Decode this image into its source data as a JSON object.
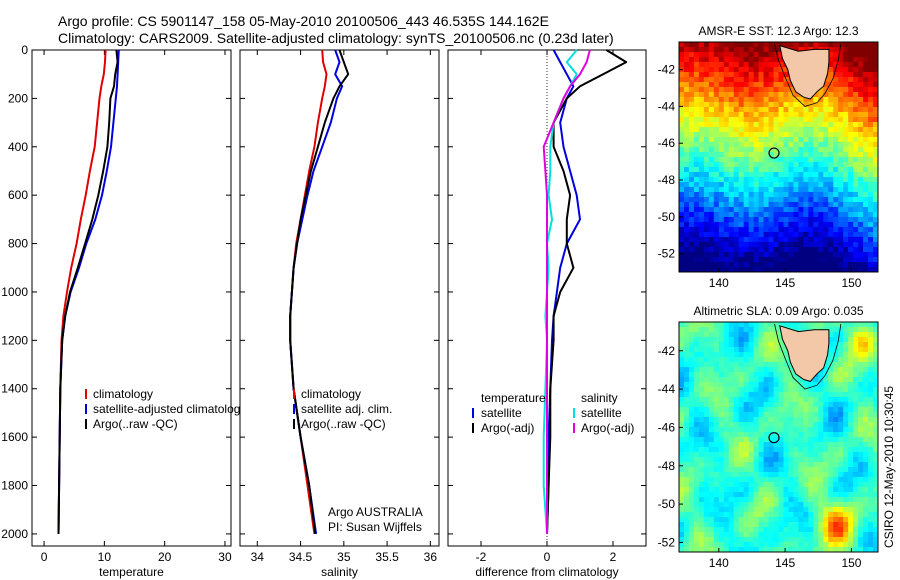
{
  "title": {
    "line1": "Argo profile: CS 5901147_158 05-May-2010 20100506_443 46.535S 144.162E",
    "line2": "Climatology: CARS2009. Satellite-adjusted climatology: synTS_20100506.nc (0.23d later)"
  },
  "colors": {
    "climatology": "#e00000",
    "satellite": "#0000e0",
    "argo": "#000000",
    "satellite_salinity": "#00e0e0",
    "argo_salinity": "#e000e0"
  },
  "chart_data": [
    {
      "type": "line",
      "name": "temperature-panel",
      "xlabel": "temperature",
      "xlim": [
        -2,
        31
      ],
      "ylim": [
        0,
        2050
      ],
      "y_reversed": true,
      "xticks": [
        "0",
        "10",
        "20",
        "30"
      ],
      "xtick_values": [
        0,
        10,
        20,
        30
      ],
      "yticks": [
        "0",
        "200",
        "400",
        "600",
        "800",
        "1000",
        "1200",
        "1400",
        "1600",
        "1800",
        "2000"
      ],
      "ytick_values": [
        0,
        200,
        400,
        600,
        800,
        1000,
        1200,
        1400,
        1600,
        1800,
        2000
      ],
      "legend": [
        "climatology",
        "satellite-adjusted climatolog",
        "Argo(..raw -QC)"
      ],
      "series": [
        {
          "key": "climatology",
          "color": "#e00000",
          "x": [
            10.2,
            10.1,
            9.9,
            9.5,
            9.2,
            8.8,
            8.4,
            7.6,
            6.9,
            6.1,
            5.4,
            4.5,
            3.8,
            3.2,
            2.9,
            2.7,
            2.6,
            2.5,
            2.4
          ],
          "y": [
            0,
            50,
            100,
            150,
            200,
            300,
            400,
            500,
            600,
            700,
            800,
            900,
            1000,
            1100,
            1200,
            1400,
            1600,
            1800,
            2000
          ]
        },
        {
          "key": "satellite",
          "color": "#0000e0",
          "x": [
            12.4,
            12.3,
            12.2,
            12.1,
            11.9,
            11.5,
            11.1,
            10.4,
            9.6,
            8.5,
            7.0,
            5.8,
            4.4,
            3.5,
            3.0,
            2.7,
            2.6,
            2.5,
            2.4
          ],
          "y": [
            0,
            50,
            100,
            150,
            200,
            300,
            400,
            500,
            600,
            700,
            800,
            900,
            1000,
            1100,
            1200,
            1400,
            1600,
            1800,
            2000
          ]
        },
        {
          "key": "argo",
          "color": "#000000",
          "x": [
            12.0,
            12.2,
            11.8,
            11.6,
            11.0,
            10.8,
            10.5,
            9.8,
            9.0,
            8.0,
            6.8,
            5.6,
            4.3,
            3.5,
            3.0,
            2.7,
            2.6,
            2.5,
            2.4
          ],
          "y": [
            0,
            50,
            100,
            150,
            200,
            300,
            400,
            500,
            600,
            700,
            800,
            900,
            1000,
            1100,
            1200,
            1400,
            1600,
            1800,
            2000
          ]
        }
      ]
    },
    {
      "type": "line",
      "name": "salinity-panel",
      "xlabel": "salinity",
      "xlim": [
        33.8,
        36.1
      ],
      "ylim": [
        0,
        2050
      ],
      "y_reversed": true,
      "xticks": [
        "34",
        "34.5",
        "35",
        "35.5",
        "36"
      ],
      "xtick_values": [
        34,
        34.5,
        35,
        35.5,
        36
      ],
      "legend": [
        "climatology",
        "satellite adj. clim.",
        "Argo(..raw -QC)"
      ],
      "annotation": [
        "Argo AUSTRALIA",
        "PI: Susan Wijffels"
      ],
      "series": [
        {
          "key": "climatology",
          "color": "#e00000",
          "x": [
            34.75,
            34.76,
            34.8,
            34.78,
            34.75,
            34.7,
            34.66,
            34.6,
            34.55,
            34.5,
            34.45,
            34.42,
            34.4,
            34.38,
            34.38,
            34.42,
            34.5,
            34.58,
            34.66
          ],
          "y": [
            0,
            50,
            100,
            150,
            200,
            300,
            400,
            500,
            600,
            700,
            800,
            900,
            1000,
            1100,
            1200,
            1400,
            1600,
            1800,
            2000
          ]
        },
        {
          "key": "satellite",
          "color": "#0000e0",
          "x": [
            34.9,
            34.95,
            34.9,
            34.98,
            34.92,
            34.85,
            34.75,
            34.65,
            34.58,
            34.52,
            34.46,
            34.42,
            34.4,
            34.38,
            34.38,
            34.42,
            34.5,
            34.6,
            34.68
          ],
          "y": [
            0,
            50,
            100,
            150,
            200,
            300,
            400,
            500,
            600,
            700,
            800,
            900,
            1000,
            1100,
            1200,
            1400,
            1600,
            1800,
            2000
          ]
        },
        {
          "key": "argo",
          "color": "#000000",
          "x": [
            34.95,
            35.0,
            35.05,
            34.95,
            34.88,
            34.78,
            34.7,
            34.62,
            34.56,
            34.5,
            34.46,
            34.42,
            34.4,
            34.38,
            34.38,
            34.42,
            34.5,
            34.6,
            34.67
          ],
          "y": [
            0,
            50,
            100,
            150,
            200,
            300,
            400,
            500,
            600,
            700,
            800,
            900,
            1000,
            1100,
            1200,
            1400,
            1600,
            1800,
            2000
          ]
        }
      ]
    },
    {
      "type": "line",
      "name": "difference-panel",
      "xlabel": "difference from climatology",
      "xlim": [
        -3,
        3
      ],
      "ylim": [
        0,
        2050
      ],
      "y_reversed": true,
      "xticks": [
        "-2",
        "0",
        "2"
      ],
      "xtick_values": [
        -2,
        0,
        2
      ],
      "legend_left": [
        "temperature",
        "satellite",
        "Argo(-adj)"
      ],
      "legend_right": [
        "salinity",
        "satellite",
        "Argo(-adj)"
      ],
      "series": [
        {
          "key": "t_satellite",
          "color": "#0000e0",
          "x": [
            0.2,
            0.4,
            0.6,
            0.8,
            0.6,
            0.4,
            0.5,
            0.7,
            0.9,
            1.0,
            0.6,
            0.4,
            0.3,
            0.2,
            0.15,
            0.1,
            0.05,
            0.05,
            0.0
          ],
          "y": [
            0,
            50,
            100,
            150,
            200,
            300,
            400,
            500,
            600,
            700,
            800,
            900,
            1000,
            1100,
            1200,
            1400,
            1600,
            1800,
            2000
          ]
        },
        {
          "key": "t_argo",
          "color": "#000000",
          "x": [
            1.8,
            2.4,
            1.7,
            1.0,
            0.6,
            0.2,
            0.2,
            0.5,
            0.7,
            0.6,
            0.6,
            0.8,
            0.4,
            0.2,
            0.2,
            0.1,
            0.1,
            0.05,
            0.0
          ],
          "y": [
            0,
            50,
            100,
            150,
            200,
            300,
            400,
            500,
            600,
            700,
            800,
            900,
            1000,
            1100,
            1200,
            1400,
            1600,
            1800,
            2000
          ]
        },
        {
          "key": "s_satellite",
          "color": "#00e0e0",
          "x": [
            0.9,
            0.6,
            0.9,
            0.7,
            0.5,
            0.2,
            0.1,
            0.1,
            0.05,
            0.15,
            0.0,
            0.05,
            0.0,
            -0.05,
            0.0,
            -0.05,
            -0.1,
            -0.1,
            0.0
          ],
          "y": [
            0,
            50,
            100,
            150,
            200,
            300,
            400,
            500,
            600,
            700,
            800,
            900,
            1000,
            1100,
            1200,
            1400,
            1600,
            1800,
            2000
          ]
        },
        {
          "key": "s_argo",
          "color": "#e000e0",
          "x": [
            1.3,
            1.2,
            1.0,
            0.7,
            0.5,
            0.2,
            -0.1,
            -0.05,
            0.0,
            0.0,
            0.0,
            0.0,
            0.0,
            0.0,
            0.0,
            0.0,
            0.0,
            0.0,
            0.0
          ],
          "y": [
            0,
            50,
            100,
            150,
            200,
            300,
            400,
            500,
            600,
            700,
            800,
            900,
            1000,
            1100,
            1200,
            1400,
            1600,
            1800,
            2000
          ]
        }
      ]
    },
    {
      "type": "heatmap",
      "name": "sst-map",
      "title": "AMSR-E SST: 12.3 Argo: 12.3",
      "xlim": [
        137,
        152
      ],
      "ylim": [
        -53,
        -40.5
      ],
      "xticks": [
        "140",
        "145",
        "150"
      ],
      "xtick_values": [
        140,
        145,
        150
      ],
      "yticks": [
        "-42",
        "-44",
        "-46",
        "-48",
        "-50",
        "-52"
      ],
      "ytick_values": [
        -42,
        -44,
        -46,
        -48,
        -50,
        -52
      ],
      "float_position": [
        144.162,
        -46.535
      ]
    },
    {
      "type": "heatmap",
      "name": "sla-map",
      "title": "Altimetric SLA: 0.09 Argo: 0.035",
      "xlim": [
        137,
        152
      ],
      "ylim": [
        -52.5,
        -40.5
      ],
      "xticks": [
        "140",
        "145",
        "150"
      ],
      "xtick_values": [
        140,
        145,
        150
      ],
      "yticks": [
        "-42",
        "-44",
        "-46",
        "-48",
        "-50",
        "-52"
      ],
      "ytick_values": [
        -42,
        -44,
        -46,
        -48,
        -50,
        -52
      ],
      "float_position": [
        144.162,
        -46.535
      ]
    }
  ],
  "credit": "CSIRO 12-May-2010 10:30:45"
}
